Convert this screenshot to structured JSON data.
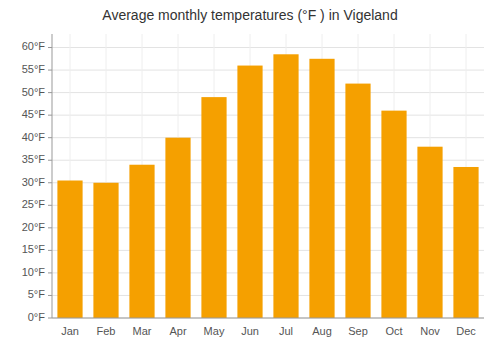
{
  "chart_data": {
    "type": "bar",
    "title": "Average monthly temperatures (°F ) in Vigeland",
    "categories": [
      "Jan",
      "Feb",
      "Mar",
      "Apr",
      "May",
      "Jun",
      "Jul",
      "Aug",
      "Sep",
      "Oct",
      "Nov",
      "Dec"
    ],
    "values": [
      30.5,
      30.0,
      34.0,
      40.0,
      49.0,
      56.0,
      58.5,
      57.5,
      52.0,
      46.0,
      38.0,
      33.5
    ],
    "color": "#F5A000",
    "ylim": [
      0,
      63
    ],
    "yticks": [
      {
        "value": 0,
        "label": "0°F"
      },
      {
        "value": 5,
        "label": "5°F"
      },
      {
        "value": 10,
        "label": "10°F"
      },
      {
        "value": 15,
        "label": "15°F"
      },
      {
        "value": 20,
        "label": "20°F"
      },
      {
        "value": 25,
        "label": "25°F"
      },
      {
        "value": 30,
        "label": "30°F"
      },
      {
        "value": 35,
        "label": "35°F"
      },
      {
        "value": 40,
        "label": "40°F"
      },
      {
        "value": 45,
        "label": "45°F"
      },
      {
        "value": 50,
        "label": "50°F"
      },
      {
        "value": 55,
        "label": "55°F"
      },
      {
        "value": 60,
        "label": "60°F"
      }
    ],
    "grid": true
  }
}
